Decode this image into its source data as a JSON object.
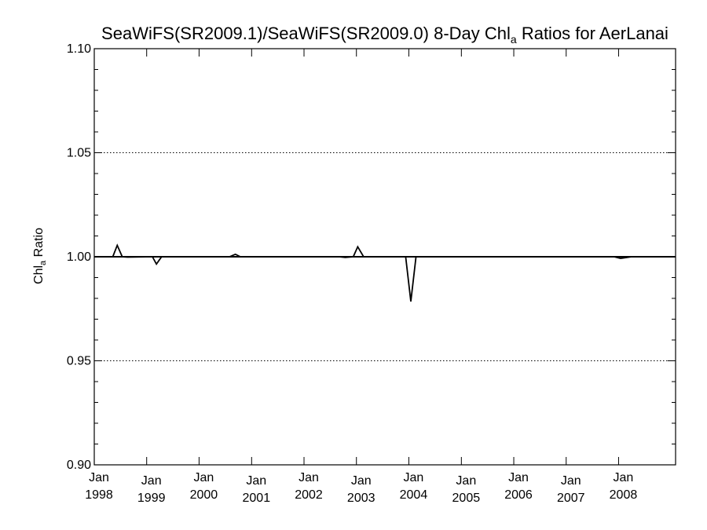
{
  "chart_data": {
    "type": "line",
    "title": {
      "main": "SeaWiFS(SR2009.1)/SeaWiFS(SR2009.0) 8-Day Chl",
      "subscript": "a",
      "rest": " Ratios for AerLanai"
    },
    "ylabel": {
      "main": "Chl",
      "subscript": "a",
      "rest": " Ratio"
    },
    "xlabel": "",
    "xlim": [
      "1998-01-01",
      "2009-02-01"
    ],
    "ylim": [
      0.9,
      1.1
    ],
    "y_ticks": [
      {
        "value": 0.9,
        "label": "0.90"
      },
      {
        "value": 0.95,
        "label": "0.95"
      },
      {
        "value": 1.0,
        "label": "1.00"
      },
      {
        "value": 1.05,
        "label": "1.05"
      },
      {
        "value": 1.1,
        "label": "1.10"
      }
    ],
    "y_minor_step": 0.01,
    "x_ticks": [
      {
        "date": "1998-01-01",
        "label": [
          "Jan",
          "1998"
        ]
      },
      {
        "date": "1999-01-01",
        "label": [
          "Jan",
          "1999"
        ]
      },
      {
        "date": "2000-01-01",
        "label": [
          "Jan",
          "2000"
        ]
      },
      {
        "date": "2001-01-01",
        "label": [
          "Jan",
          "2001"
        ]
      },
      {
        "date": "2002-01-01",
        "label": [
          "Jan",
          "2002"
        ]
      },
      {
        "date": "2003-01-01",
        "label": [
          "Jan",
          "2003"
        ]
      },
      {
        "date": "2004-01-01",
        "label": [
          "Jan",
          "2004"
        ]
      },
      {
        "date": "2005-01-01",
        "label": [
          "Jan",
          "2005"
        ]
      },
      {
        "date": "2006-01-01",
        "label": [
          "Jan",
          "2006"
        ]
      },
      {
        "date": "2007-01-01",
        "label": [
          "Jan",
          "2007"
        ]
      },
      {
        "date": "2008-01-01",
        "label": [
          "Jan",
          "2008"
        ]
      }
    ],
    "grid": {
      "y_values": [
        0.95,
        1.0,
        1.05
      ],
      "style": "dotted"
    },
    "reference_line": 1.0,
    "series": [
      {
        "color": "#000000",
        "points": [
          {
            "x": "1998-01-01",
            "y": 1.0
          },
          {
            "x": "1998-05-10",
            "y": 1.0
          },
          {
            "x": "1998-06-10",
            "y": 1.0055
          },
          {
            "x": "1998-07-15",
            "y": 1.0
          },
          {
            "x": "1998-08-20",
            "y": 0.9998
          },
          {
            "x": "1999-02-10",
            "y": 1.0
          },
          {
            "x": "1999-03-10",
            "y": 0.9965
          },
          {
            "x": "1999-04-15",
            "y": 1.0
          },
          {
            "x": "2000-08-01",
            "y": 1.0
          },
          {
            "x": "2000-09-10",
            "y": 1.0012
          },
          {
            "x": "2000-10-15",
            "y": 1.0
          },
          {
            "x": "2002-09-01",
            "y": 1.0
          },
          {
            "x": "2002-10-15",
            "y": 0.9997
          },
          {
            "x": "2002-12-10",
            "y": 1.0
          },
          {
            "x": "2003-01-10",
            "y": 1.0048
          },
          {
            "x": "2003-02-20",
            "y": 1.0
          },
          {
            "x": "2003-12-10",
            "y": 1.0
          },
          {
            "x": "2004-01-15",
            "y": 0.9785
          },
          {
            "x": "2004-02-20",
            "y": 1.0
          },
          {
            "x": "2007-12-01",
            "y": 1.0
          },
          {
            "x": "2008-01-15",
            "y": 0.9992
          },
          {
            "x": "2008-04-01",
            "y": 1.0
          },
          {
            "x": "2009-02-01",
            "y": 1.0
          }
        ]
      }
    ]
  }
}
